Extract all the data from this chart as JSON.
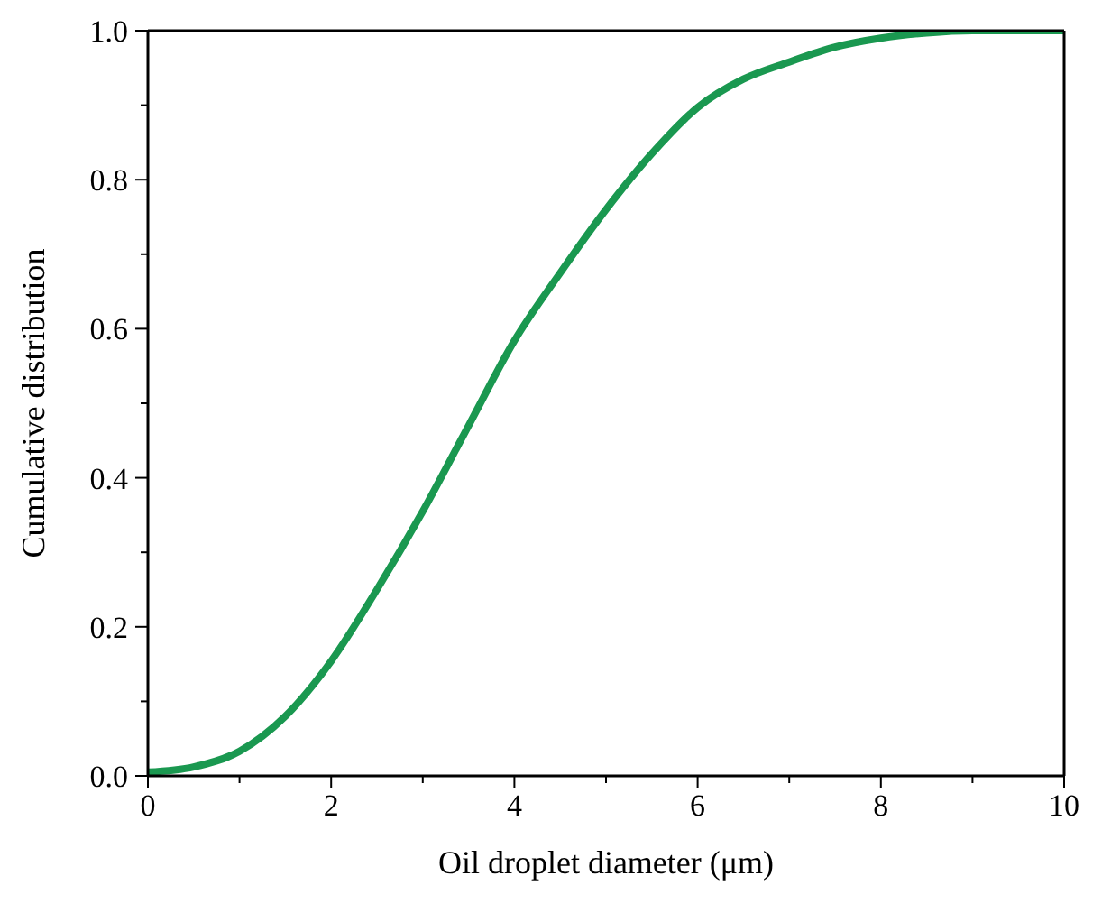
{
  "chart_data": {
    "type": "line",
    "xlabel": "Oil droplet diameter (μm)",
    "ylabel": "Cumulative distribution",
    "x": [
      0,
      0.5,
      1,
      1.5,
      2,
      2.5,
      3,
      3.5,
      4,
      4.5,
      5,
      5.5,
      6,
      6.5,
      7,
      7.5,
      8,
      8.5,
      9,
      9.5,
      10
    ],
    "series": [
      {
        "color": "#1a9850",
        "values": [
          0.005,
          0.012,
          0.033,
          0.08,
          0.154,
          0.25,
          0.355,
          0.47,
          0.584,
          0.675,
          0.76,
          0.835,
          0.897,
          0.935,
          0.958,
          0.978,
          0.99,
          0.997,
          1.0,
          1.0,
          1.0
        ]
      }
    ],
    "xlim": [
      0,
      10
    ],
    "ylim": [
      0,
      1
    ],
    "xticks": [
      0,
      {
        "value": 1,
        "label": null
      },
      2,
      {
        "value": 3,
        "label": null
      },
      4,
      {
        "value": 5,
        "label": null
      },
      6,
      {
        "value": 7,
        "label": null
      },
      8,
      {
        "value": 9,
        "label": null
      },
      10
    ],
    "yticks": [
      {
        "value": 0,
        "label": "0.0"
      },
      {
        "value": 0.1,
        "label": null
      },
      0.2,
      {
        "value": 0.3,
        "label": null
      },
      0.4,
      {
        "value": 0.5,
        "label": null
      },
      0.6,
      {
        "value": 0.7,
        "label": null
      },
      0.8,
      {
        "value": 0.9,
        "label": null
      },
      {
        "value": 1,
        "label": "1.0"
      }
    ],
    "grid": false,
    "legend": false,
    "marker": "none",
    "line_style": "solid"
  }
}
